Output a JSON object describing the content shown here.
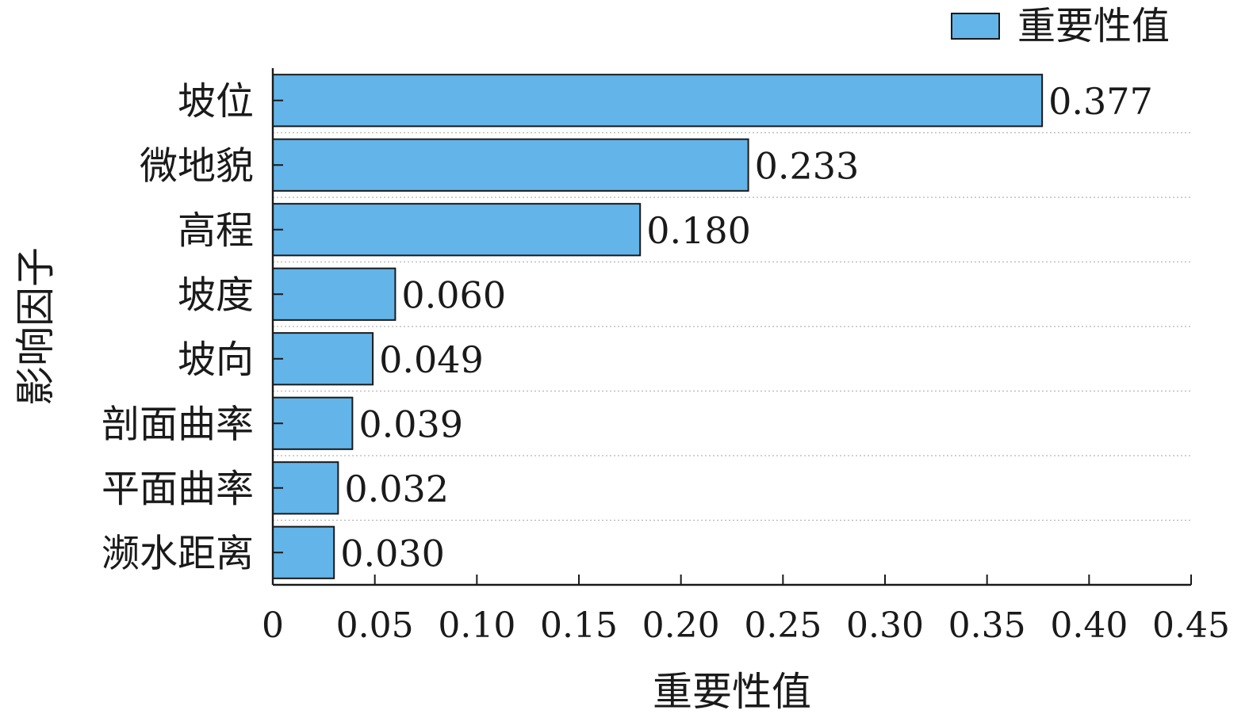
{
  "chart_data": {
    "type": "bar",
    "orientation": "horizontal",
    "title": "",
    "xlabel": "重要性值",
    "ylabel": "影响因子",
    "categories": [
      "坡位",
      "微地貌",
      "高程",
      "坡度",
      "坡向",
      "剖面曲率",
      "平面曲率",
      "濒水距离"
    ],
    "series": [
      {
        "name": "重要性值",
        "values": [
          0.377,
          0.233,
          0.18,
          0.06,
          0.049,
          0.039,
          0.032,
          0.03
        ],
        "value_labels": [
          "0.377",
          "0.233",
          "0.180",
          "0.060",
          "0.049",
          "0.039",
          "0.032",
          "0.030"
        ]
      }
    ],
    "xlim": [
      0,
      0.45
    ],
    "xticks": [
      0,
      0.05,
      0.1,
      0.15,
      0.2,
      0.25,
      0.3,
      0.35,
      0.4,
      0.45
    ],
    "xtick_labels": [
      "0",
      "0.05",
      "0.10",
      "0.15",
      "0.20",
      "0.25",
      "0.30",
      "0.35",
      "0.40",
      "0.45"
    ],
    "grid": "horizontal dotted",
    "legend": "top-right",
    "bar_color": "#63b4e8",
    "bar_edge_color": "#1a1a1a"
  }
}
